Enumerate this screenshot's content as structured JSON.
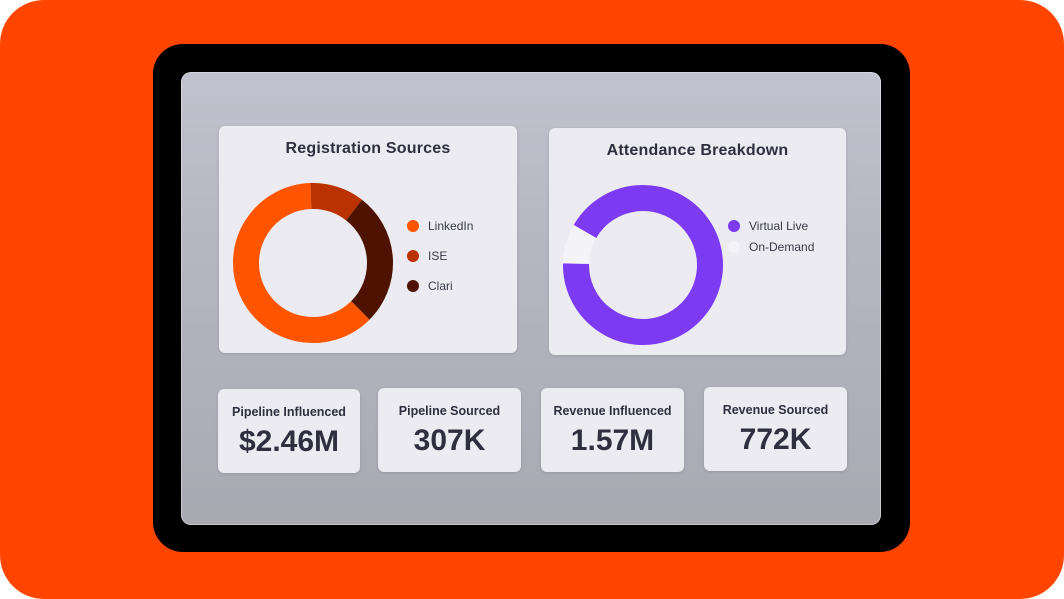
{
  "colors": {
    "background": "#ff4500",
    "linkedin": "#ff5500",
    "ise": "#b93200",
    "clari": "#4e1200",
    "virtual_live": "#7c3af2",
    "on_demand": "#f4f4f8"
  },
  "registration": {
    "title": "Registration Sources",
    "legend": [
      {
        "label": "LinkedIn",
        "color": "#ff5500",
        "icon": "legend-dot-icon"
      },
      {
        "label": "ISE",
        "color": "#b93200",
        "icon": "legend-dot-icon"
      },
      {
        "label": "Clari",
        "color": "#4e1200",
        "icon": "legend-dot-icon"
      }
    ]
  },
  "attendance": {
    "title": "Attendance Breakdown",
    "legend": [
      {
        "label": "Virtual Live",
        "color": "#7c3af2",
        "icon": "legend-dot-icon"
      },
      {
        "label": "On-Demand",
        "color": "#f4f4f8",
        "icon": "legend-dot-icon"
      }
    ]
  },
  "metrics": [
    {
      "label": "Pipeline Influenced",
      "value": "$2.46M"
    },
    {
      "label": "Pipeline Sourced",
      "value": "307K"
    },
    {
      "label": "Revenue Influenced",
      "value": "1.57M"
    },
    {
      "label": "Revenue Sourced",
      "value": "772K"
    }
  ],
  "chart_data": [
    {
      "type": "pie",
      "title": "Registration Sources",
      "categories": [
        "LinkedIn",
        "ISE",
        "Clari"
      ],
      "values": [
        62,
        11,
        27
      ],
      "unit": "percent (estimated)"
    },
    {
      "type": "pie",
      "title": "Attendance Breakdown",
      "categories": [
        "Virtual Live",
        "On-Demand"
      ],
      "values": [
        92,
        8
      ],
      "unit": "percent (estimated)"
    }
  ]
}
